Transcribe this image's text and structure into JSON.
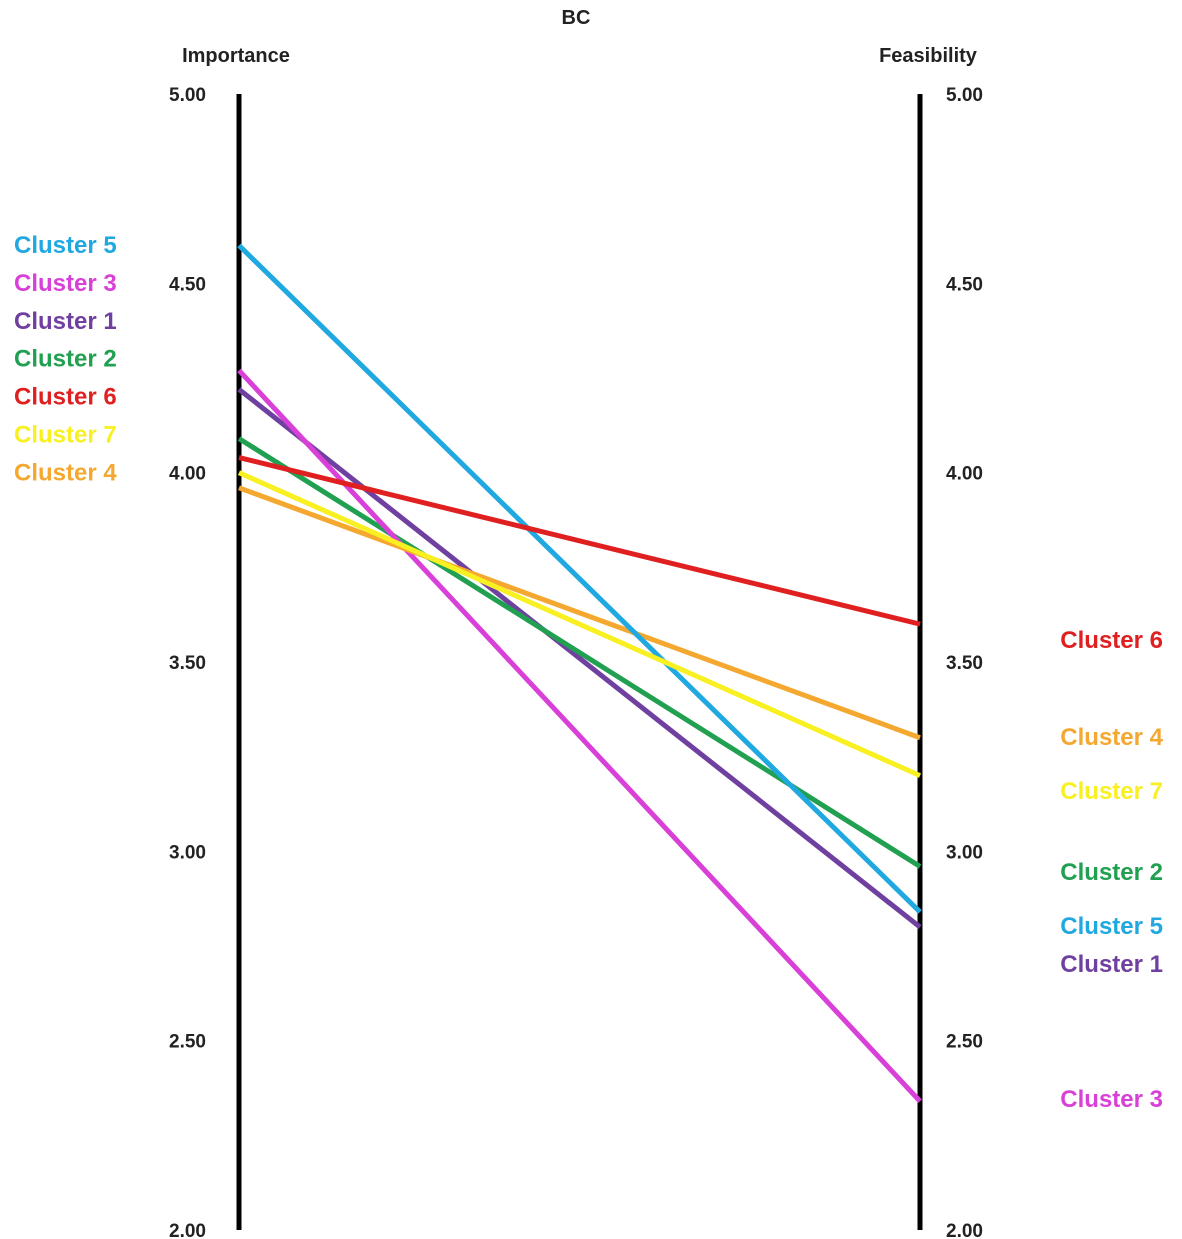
{
  "chart_data": {
    "type": "line",
    "title": "BC",
    "axes": {
      "left": {
        "label": "Importance"
      },
      "right": {
        "label": "Feasibility"
      }
    },
    "ylim": [
      2.0,
      5.0
    ],
    "ticks": [
      "5.00",
      "4.50",
      "4.00",
      "3.50",
      "3.00",
      "2.50",
      "2.00"
    ],
    "series": [
      {
        "name": "Cluster 1",
        "color": "#7040a0",
        "importance": 4.22,
        "feasibility": 2.8
      },
      {
        "name": "Cluster 2",
        "color": "#20a050",
        "importance": 4.09,
        "feasibility": 2.96
      },
      {
        "name": "Cluster 3",
        "color": "#d840d8",
        "importance": 4.27,
        "feasibility": 2.34
      },
      {
        "name": "Cluster 4",
        "color": "#f5a830",
        "importance": 3.96,
        "feasibility": 3.3
      },
      {
        "name": "Cluster 5",
        "color": "#20a8e0",
        "importance": 4.6,
        "feasibility": 2.84
      },
      {
        "name": "Cluster 6",
        "color": "#e02020",
        "importance": 4.04,
        "feasibility": 3.6
      },
      {
        "name": "Cluster 7",
        "color": "#f8f020",
        "importance": 4.0,
        "feasibility": 3.2
      }
    ],
    "left_label_order": [
      "Cluster 5",
      "Cluster 3",
      "Cluster 1",
      "Cluster 2",
      "Cluster 6",
      "Cluster 7",
      "Cluster 4"
    ],
    "right_label_order": [
      "Cluster 6",
      "Cluster 4",
      "Cluster 7",
      "Cluster 2",
      "Cluster 5",
      "Cluster 1",
      "Cluster 3"
    ]
  }
}
